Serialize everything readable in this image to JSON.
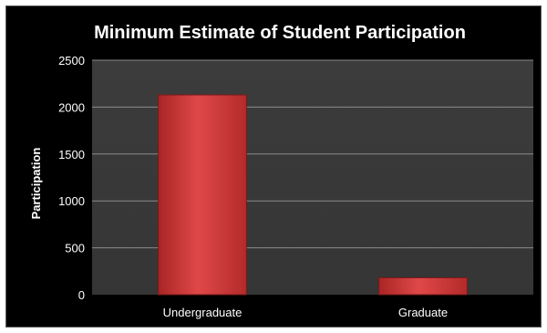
{
  "chart_data": {
    "type": "bar",
    "title": "Minimum Estimate of Student Participation",
    "xlabel": "",
    "ylabel": "Participation",
    "categories": [
      "Undergraduate",
      "Graduate"
    ],
    "values": [
      2130,
      180
    ],
    "ylim": [
      0,
      2500
    ],
    "yticks": [
      0,
      500,
      1000,
      1500,
      2000,
      2500
    ],
    "grid": true,
    "legend": "none",
    "colors": {
      "background": "#000000",
      "plot_area": "#3a3a3a",
      "bar": "#d63a3a",
      "grid": "#8a8a8a",
      "text": "#ffffff"
    }
  }
}
